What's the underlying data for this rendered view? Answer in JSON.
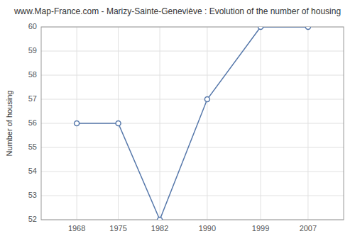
{
  "chart_data": {
    "type": "line",
    "title": "www.Map-France.com - Marizy-Sainte-Geneviève : Evolution of the number of housing",
    "x": [
      1968,
      1975,
      1982,
      1990,
      1999,
      2007
    ],
    "values": [
      56,
      56,
      52,
      57,
      60,
      60
    ],
    "ylabel": "Number of housing",
    "xlim": [
      1962,
      2013
    ],
    "ylim": [
      52,
      60
    ],
    "xticks": [
      1968,
      1975,
      1982,
      1990,
      1999,
      2007
    ],
    "yticks": [
      52,
      53,
      54,
      55,
      56,
      57,
      58,
      59,
      60
    ],
    "color": "#5577aa",
    "marker": "circle",
    "grid": true
  }
}
